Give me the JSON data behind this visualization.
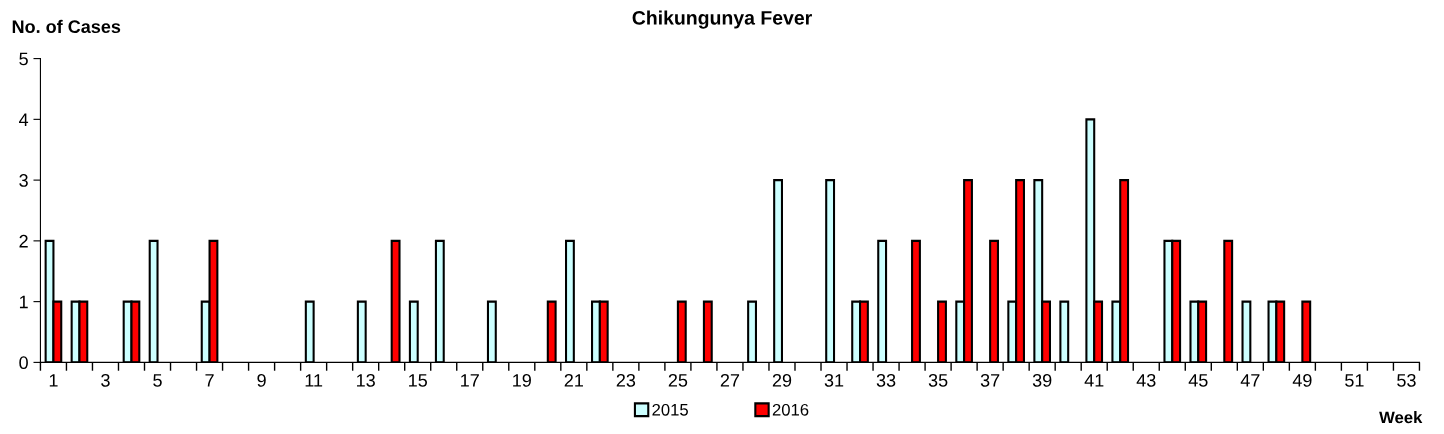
{
  "chart_data": {
    "type": "bar",
    "title": "Chikungunya Fever",
    "xlabel": "Week",
    "ylabel": "No. of Cases",
    "categories": [
      "1",
      null,
      "3",
      null,
      "5",
      null,
      "7",
      null,
      "9",
      null,
      "11",
      null,
      "13",
      null,
      "15",
      null,
      "17",
      null,
      "19",
      null,
      "21",
      null,
      "23",
      null,
      "25",
      null,
      "27",
      null,
      "29",
      null,
      "31",
      null,
      "33",
      null,
      "35",
      null,
      "37",
      null,
      "39",
      null,
      "41",
      null,
      "43",
      null,
      "45",
      null,
      "47",
      null,
      "49",
      null,
      "51",
      null,
      "53"
    ],
    "series": [
      {
        "name": "2015",
        "color": "#ccffff",
        "values": [
          2,
          1,
          0,
          1,
          2,
          0,
          1,
          0,
          0,
          0,
          1,
          0,
          1,
          0,
          1,
          2,
          0,
          1,
          0,
          0,
          2,
          1,
          0,
          0,
          0,
          0,
          0,
          1,
          3,
          0,
          3,
          1,
          2,
          0,
          0,
          1,
          0,
          1,
          3,
          1,
          4,
          1,
          0,
          2,
          1,
          0,
          1,
          1,
          0,
          0,
          0,
          0,
          0
        ]
      },
      {
        "name": "2016",
        "color": "#ff0000",
        "values": [
          1,
          1,
          0,
          1,
          0,
          0,
          2,
          0,
          0,
          0,
          0,
          0,
          0,
          2,
          0,
          0,
          0,
          0,
          0,
          1,
          0,
          1,
          0,
          0,
          1,
          1,
          0,
          0,
          0,
          0,
          0,
          1,
          0,
          2,
          1,
          3,
          2,
          3,
          1,
          0,
          1,
          3,
          0,
          2,
          1,
          2,
          0,
          1,
          1,
          0,
          0,
          0,
          0
        ]
      }
    ],
    "ylim": [
      0,
      5
    ],
    "yticks": [
      0,
      1,
      2,
      3,
      4,
      5
    ],
    "grid": false,
    "legend": "bottom"
  }
}
